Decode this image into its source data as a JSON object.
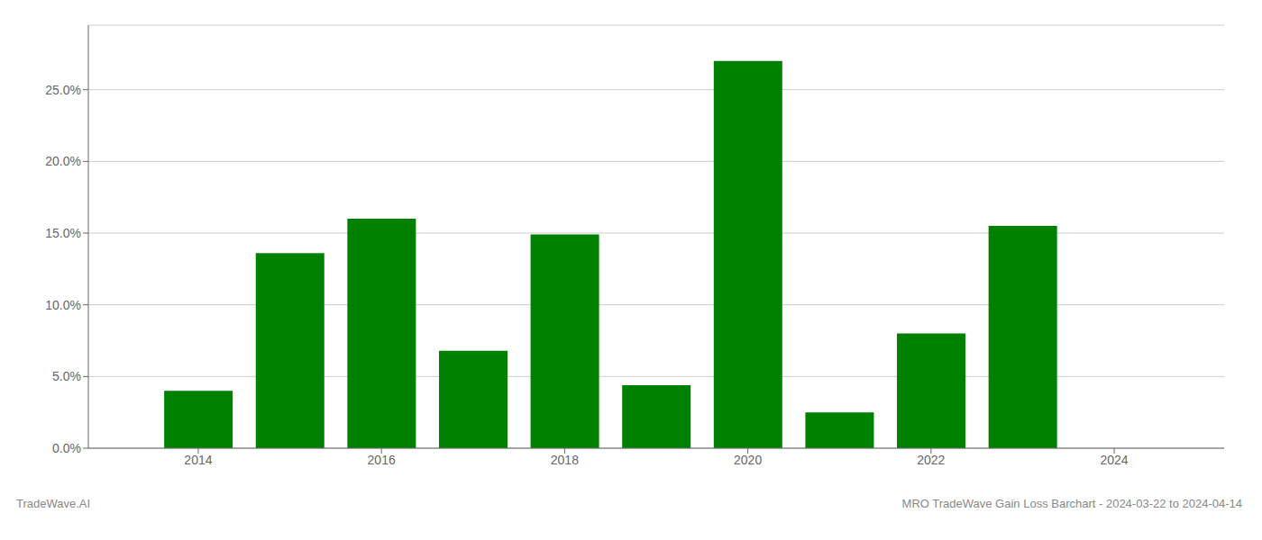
{
  "chart_data": {
    "type": "bar",
    "title": "MRO TradeWave Gain Loss Barchart - 2024-03-22 to 2024-04-14",
    "annotations": [
      "TradeWave.AI"
    ],
    "x": [
      2014,
      2015,
      2016,
      2017,
      2018,
      2019,
      2020,
      2021,
      2022,
      2023
    ],
    "values": [
      0.04,
      0.136,
      0.16,
      0.068,
      0.149,
      0.044,
      0.27,
      0.025,
      0.08,
      0.155
    ],
    "color": "#008000",
    "xlim": [
      2012.8,
      2025.2
    ],
    "xticks": [
      2014,
      2016,
      2018,
      2020,
      2022,
      2024
    ],
    "ylim": [
      0,
      0.295
    ],
    "yticks": [
      {
        "value": 0.0,
        "label": "0.0%"
      },
      {
        "value": 0.05,
        "label": "5.0%"
      },
      {
        "value": 0.1,
        "label": "10.0%"
      },
      {
        "value": 0.15,
        "label": "15.0%"
      },
      {
        "value": 0.2,
        "label": "20.0%"
      },
      {
        "value": 0.25,
        "label": "25.0%"
      }
    ],
    "grid": true
  }
}
